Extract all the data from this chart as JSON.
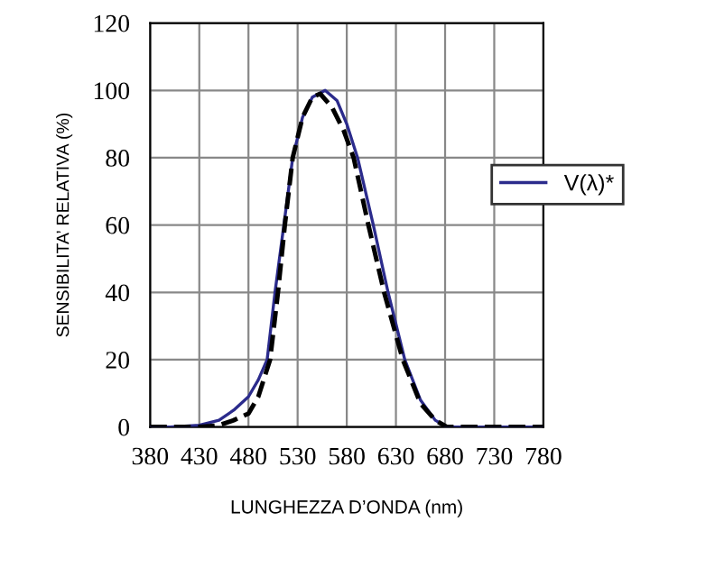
{
  "chart_data": {
    "type": "line",
    "xlabel": "LUNGHEZZA D’ONDA (nm)",
    "ylabel": "SENSIBILITA’ RELATIVA (%)",
    "xlim": [
      380,
      780
    ],
    "xticks": [
      380,
      430,
      480,
      530,
      580,
      630,
      680,
      730,
      780
    ],
    "ylim": [
      0,
      120
    ],
    "yticks": [
      0,
      20,
      40,
      60,
      80,
      100,
      120
    ],
    "grid": true,
    "legend": "right",
    "series": [
      {
        "name": "V(λ)*",
        "color": "#2b2b8c",
        "line_style": "solid",
        "x": [
          380,
          400,
          430,
          450,
          465,
          480,
          490,
          499,
          507,
          516,
          525,
          535,
          545,
          558,
          570,
          580,
          591,
          607,
          622,
          639,
          655,
          670,
          682,
          700,
          730,
          780
        ],
        "values": [
          0,
          0,
          0.5,
          2,
          5,
          9,
          14,
          20,
          40,
          60,
          80,
          92,
          98,
          100,
          97,
          90,
          80,
          60,
          40,
          20,
          8,
          2,
          0,
          0,
          0,
          0
        ]
      },
      {
        "color": "#000000",
        "line_style": "dashed",
        "x": [
          380,
          400,
          430,
          450,
          465,
          480,
          490,
          502,
          510,
          517,
          525,
          535,
          545,
          553,
          565,
          577,
          587,
          602,
          618,
          637,
          655,
          670,
          682,
          700,
          730,
          780
        ],
        "values": [
          0,
          0,
          0,
          0.5,
          2,
          4,
          9,
          20,
          40,
          60,
          80,
          92,
          98,
          99,
          95,
          88,
          80,
          60,
          40,
          20,
          7,
          2,
          0,
          0,
          0,
          0
        ]
      }
    ]
  }
}
